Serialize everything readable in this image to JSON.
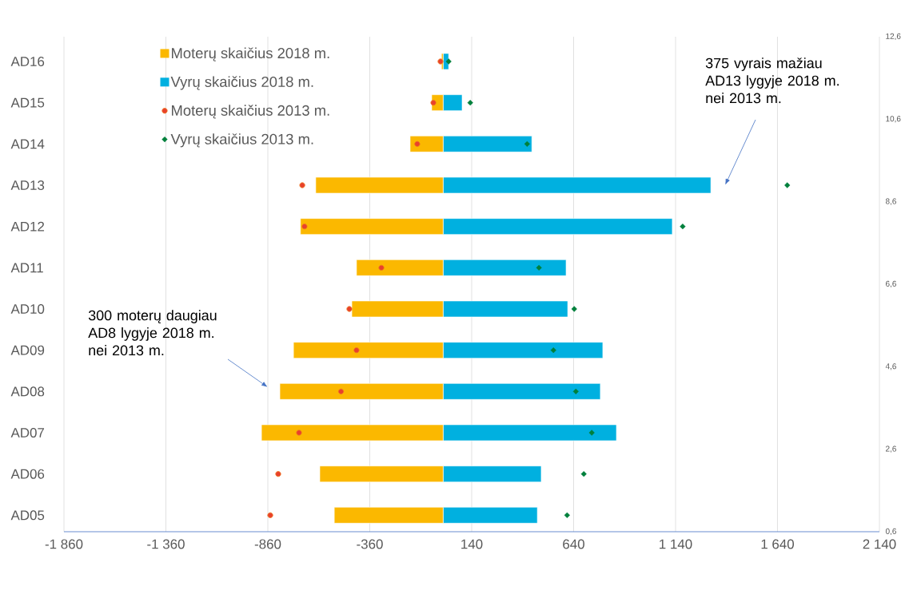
{
  "chart_data": {
    "type": "bar",
    "orientation": "horizontal",
    "stacked": true,
    "categories": [
      "AD16",
      "AD15",
      "AD14",
      "AD13",
      "AD12",
      "AD11",
      "AD10",
      "AD09",
      "AD08",
      "AD07",
      "AD06",
      "AD05"
    ],
    "series": [
      {
        "name": "Moterų skaičius 2018 m.",
        "color": "#fbb800",
        "values": [
          -8,
          -56,
          -162,
          -625,
          -700,
          -425,
          -448,
          -734,
          -801,
          -891,
          -605,
          -534
        ]
      },
      {
        "name": "Vyrų skaičius 2018 m.",
        "color": "#00b0e0",
        "values": [
          27,
          93,
          435,
          1313,
          1124,
          603,
          611,
          783,
          771,
          850,
          481,
          462
        ]
      },
      {
        "name": "Moterų skaičius 2013 m.",
        "type": "scatter",
        "marker": "circle",
        "color": "#e8412c",
        "x": [
          "AD16",
          "AD15",
          "AD14",
          "AD13",
          "AD12",
          "AD11",
          "AD10",
          "AD09",
          "AD08",
          "AD07",
          "AD06",
          "AD05"
        ],
        "values": [
          -13,
          -48,
          -127,
          -691,
          -680,
          -303,
          -460,
          -425,
          -501,
          -707,
          -809,
          -848
        ]
      },
      {
        "name": "Vyrų skaičius 2013 m.",
        "type": "scatter",
        "marker": "diamond",
        "color": "#00803c",
        "x": [
          "AD16",
          "AD15",
          "AD14",
          "AD13",
          "AD12",
          "AD11",
          "AD10",
          "AD09",
          "AD08",
          "AD07",
          "AD06",
          "AD05"
        ],
        "values": [
          27,
          133,
          412,
          1688,
          1175,
          470,
          643,
          541,
          651,
          729,
          690,
          608
        ]
      }
    ],
    "xlim": [
      -1860,
      2140
    ],
    "xticks": [
      {
        "value": -1860,
        "label": "-1 860"
      },
      {
        "value": -1360,
        "label": "-1 360"
      },
      {
        "value": -860,
        "label": "-860"
      },
      {
        "value": -360,
        "label": "-360"
      },
      {
        "value": 140,
        "label": "140"
      },
      {
        "value": 640,
        "label": "640"
      },
      {
        "value": 1140,
        "label": "1 140"
      },
      {
        "value": 1640,
        "label": "1 640"
      },
      {
        "value": 2140,
        "label": "2 140"
      }
    ],
    "y2lim": [
      0.6,
      12.6
    ],
    "y2ticks": [
      {
        "value": 0.6,
        "label": "0,6"
      },
      {
        "value": 2.6,
        "label": "2,6"
      },
      {
        "value": 4.6,
        "label": "4,6"
      },
      {
        "value": 6.6,
        "label": "6,6"
      },
      {
        "value": 8.6,
        "label": "8,6"
      },
      {
        "value": 10.6,
        "label": "10,6"
      },
      {
        "value": 12.6,
        "label": "12,6"
      }
    ],
    "grid": "x",
    "legend": "top left",
    "annotations": [
      "375 vyrais mažiau AD13 lygyje 2018 m. nei 2013 m.",
      "300 moterų daugiau AD8 lygyje 2018 m. nei 2013 m."
    ]
  }
}
